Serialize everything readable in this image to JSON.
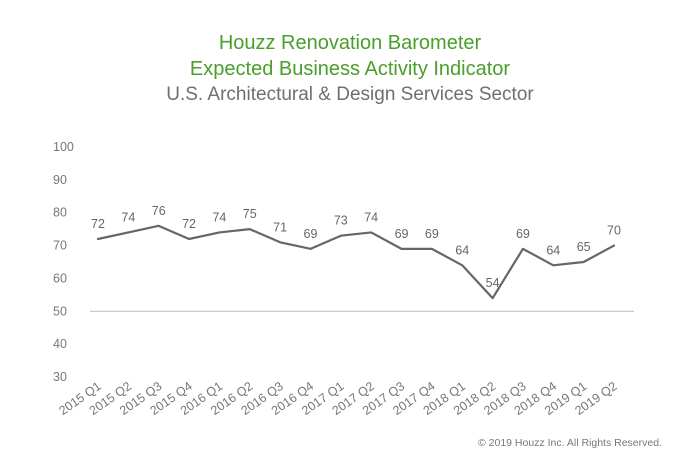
{
  "chart_data": {
    "type": "line",
    "title_line1": "Houzz Renovation Barometer",
    "title_line2": "Expected Business Activity Indicator",
    "subtitle": "U.S. Architectural & Design Services Sector",
    "xlabel": "",
    "ylabel": "",
    "ylim": [
      30,
      100
    ],
    "yticks": [
      "100",
      "90",
      "80",
      "70",
      "60",
      "50",
      "40",
      "30"
    ],
    "reference_line": 50,
    "grid": false,
    "categories": [
      "2015 Q1",
      "2015 Q2",
      "2015 Q3",
      "2015 Q4",
      "2016 Q1",
      "2016 Q2",
      "2016 Q3",
      "2016 Q4",
      "2017 Q1",
      "2017 Q2",
      "2017 Q3",
      "2017 Q4",
      "2018 Q1",
      "2018 Q2",
      "2018 Q3",
      "2018 Q4",
      "2019 Q1",
      "2019 Q2"
    ],
    "values": [
      72,
      74,
      76,
      72,
      74,
      75,
      71,
      69,
      73,
      74,
      69,
      69,
      64,
      54,
      69,
      64,
      65,
      70
    ],
    "colors": {
      "line": "#666666",
      "reference": "#bbbbbb"
    }
  },
  "footer": {
    "copyright": "© 2019 Houzz Inc. All Rights Reserved."
  }
}
